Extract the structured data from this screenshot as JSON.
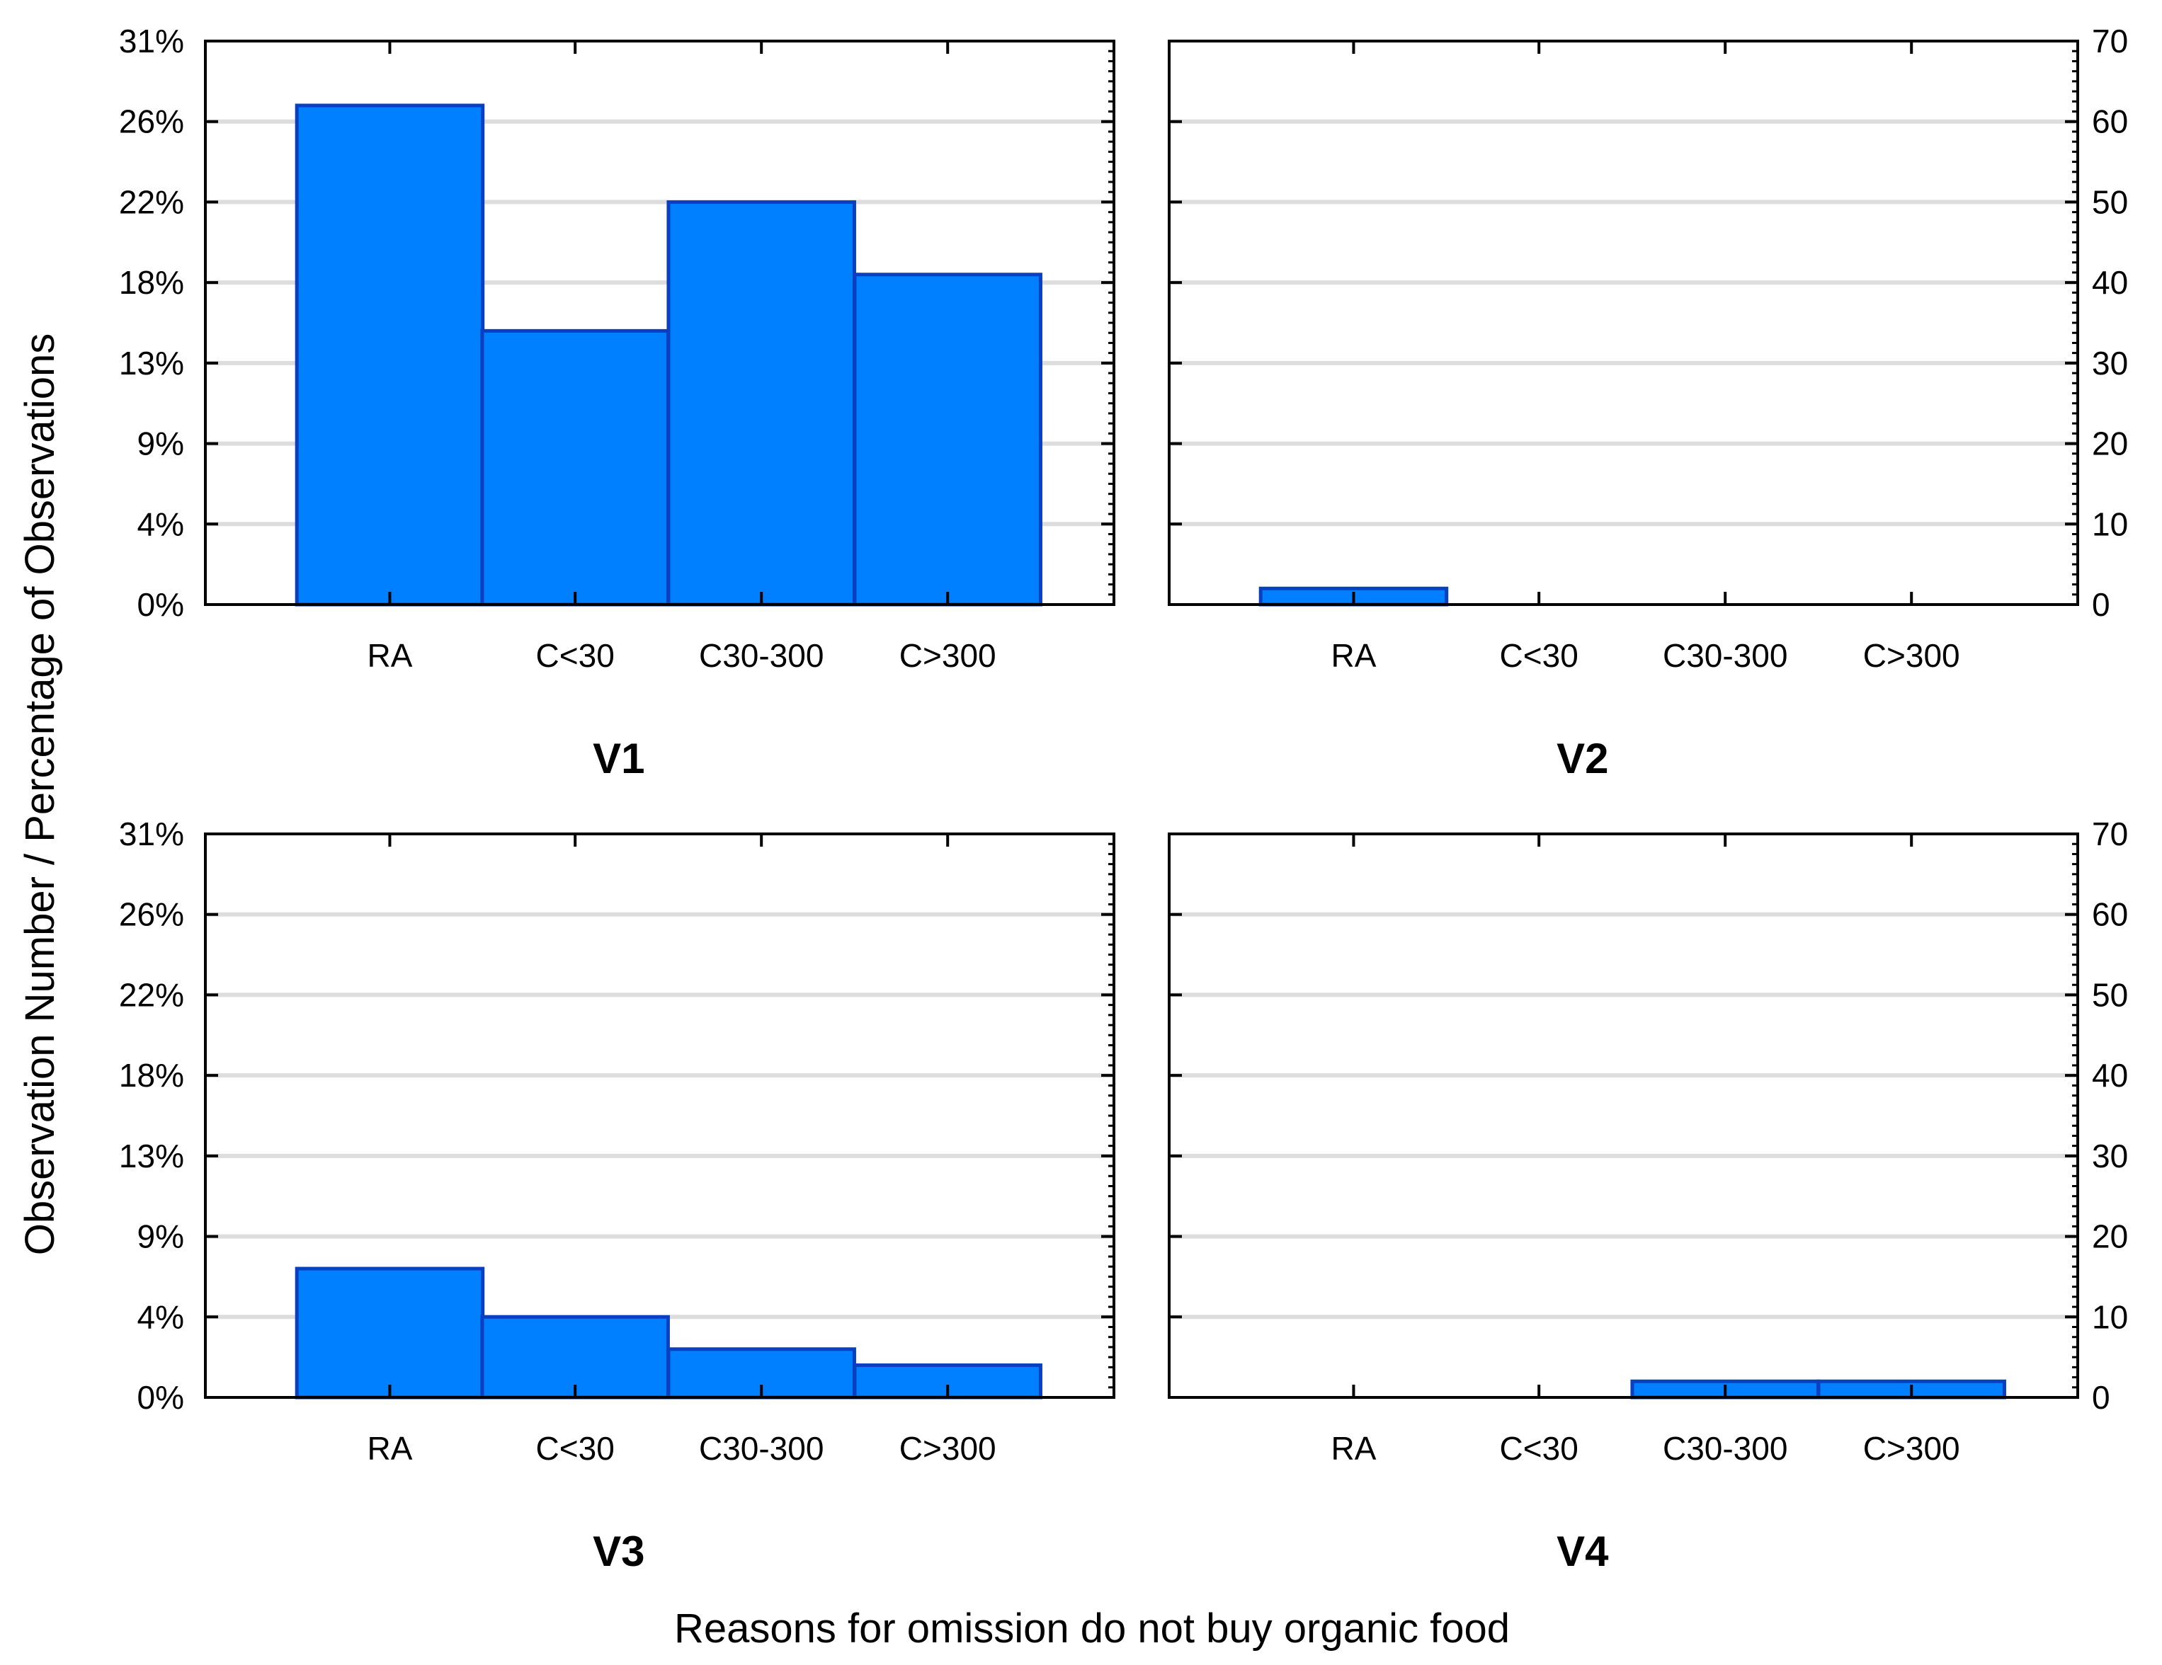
{
  "chart_data": {
    "type": "bar",
    "ylabel": "Observation Number / Percentage of Observations",
    "xlabel": "Reasons for omission do not buy organic food",
    "categories": [
      "RA",
      "C<30",
      "C30-300",
      "C>300"
    ],
    "left_axis_ticks": [
      "0%",
      "4%",
      "9%",
      "13%",
      "18%",
      "22%",
      "26%",
      "31%"
    ],
    "right_axis_ticks": [
      "0",
      "10",
      "20",
      "30",
      "40",
      "50",
      "60",
      "70"
    ],
    "ylim": [
      0,
      70
    ],
    "bar_color": "#0080ff",
    "bar_edge_color": "#0a3fbf",
    "panels": [
      {
        "title": "V1",
        "values": [
          62,
          34,
          50,
          41
        ]
      },
      {
        "title": "V2",
        "values": [
          2,
          0,
          0,
          0
        ]
      },
      {
        "title": "V3",
        "values": [
          16,
          10,
          6,
          4
        ]
      },
      {
        "title": "V4",
        "values": [
          0,
          0,
          2,
          2
        ]
      }
    ]
  }
}
